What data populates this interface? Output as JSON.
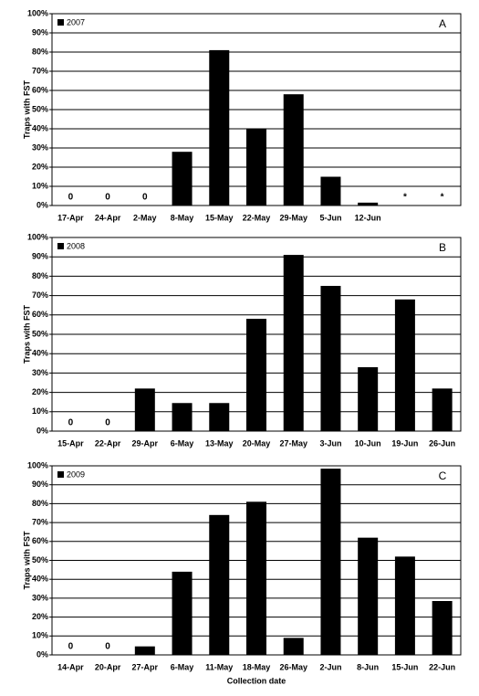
{
  "chart_data": [
    {
      "type": "bar",
      "annotation": "A",
      "y_label": "Traps with FST",
      "color": "#000000",
      "series": [
        {
          "name": "2007",
          "color": "#000000",
          "values": [
            0,
            0,
            0,
            28,
            81,
            40,
            58,
            15,
            1.5,
            null,
            null
          ],
          "value_labels": [
            "0",
            "0",
            "0",
            null,
            null,
            null,
            null,
            null,
            null,
            "*",
            "*"
          ]
        }
      ],
      "categories": [
        "17-Apr",
        "24-Apr",
        "2-May",
        "8-May",
        "15-May",
        "22-May",
        "29-May",
        "5-Jun",
        "12-Jun",
        null,
        null
      ],
      "ylim": [
        0,
        100
      ],
      "yticks": [
        {
          "value": 0,
          "label": "0%"
        },
        {
          "value": 10,
          "label": "10%"
        },
        {
          "value": 20,
          "label": "20%"
        },
        {
          "value": 30,
          "label": "30%"
        },
        {
          "value": 40,
          "label": "40%"
        },
        {
          "value": 50,
          "label": "50%"
        },
        {
          "value": 60,
          "label": "60%"
        },
        {
          "value": 70,
          "label": "70%"
        },
        {
          "value": 80,
          "label": "80%"
        },
        {
          "value": 90,
          "label": "90%"
        },
        {
          "value": 100,
          "label": "100%"
        }
      ],
      "grid": true,
      "legend": "upper left"
    },
    {
      "type": "bar",
      "annotation": "B",
      "y_label": "Traps with FST",
      "color": "#000000",
      "series": [
        {
          "name": "2008",
          "color": "#000000",
          "values": [
            0,
            0,
            22,
            14.5,
            14.5,
            58,
            91,
            75,
            33,
            68,
            22
          ],
          "value_labels": [
            "0",
            "0",
            null,
            null,
            null,
            null,
            null,
            null,
            null,
            null,
            null
          ]
        }
      ],
      "categories": [
        "15-Apr",
        "22-Apr",
        "29-Apr",
        "6-May",
        "13-May",
        "20-May",
        "27-May",
        "3-Jun",
        "10-Jun",
        "19-Jun",
        "26-Jun"
      ],
      "ylim": [
        0,
        100
      ],
      "yticks": [
        {
          "value": 0,
          "label": "0%"
        },
        {
          "value": 10,
          "label": "10%"
        },
        {
          "value": 20,
          "label": "20%"
        },
        {
          "value": 30,
          "label": "30%"
        },
        {
          "value": 40,
          "label": "40%"
        },
        {
          "value": 50,
          "label": "50%"
        },
        {
          "value": 60,
          "label": "60%"
        },
        {
          "value": 70,
          "label": "70%"
        },
        {
          "value": 80,
          "label": "80%"
        },
        {
          "value": 90,
          "label": "90%"
        },
        {
          "value": 100,
          "label": "100%"
        }
      ],
      "grid": true,
      "legend": "upper left"
    },
    {
      "type": "bar",
      "annotation": "C",
      "y_label": "Traps with FST",
      "x_label": "Collection date",
      "color": "#000000",
      "series": [
        {
          "name": "2009",
          "color": "#000000",
          "values": [
            0,
            0,
            4.5,
            44,
            74,
            81,
            9,
            98.5,
            62,
            52,
            28.5
          ],
          "value_labels": [
            "0",
            "0",
            null,
            null,
            null,
            null,
            null,
            null,
            null,
            null,
            null
          ]
        }
      ],
      "categories": [
        "14-Apr",
        "20-Apr",
        "27-Apr",
        "6-May",
        "11-May",
        "18-May",
        "26-May",
        "2-Jun",
        "8-Jun",
        "15-Jun",
        "22-Jun"
      ],
      "ylim": [
        0,
        100
      ],
      "yticks": [
        {
          "value": 0,
          "label": "0%"
        },
        {
          "value": 10,
          "label": "10%"
        },
        {
          "value": 20,
          "label": "20%"
        },
        {
          "value": 30,
          "label": "30%"
        },
        {
          "value": 40,
          "label": "40%"
        },
        {
          "value": 50,
          "label": "50%"
        },
        {
          "value": 60,
          "label": "60%"
        },
        {
          "value": 70,
          "label": "70%"
        },
        {
          "value": 80,
          "label": "80%"
        },
        {
          "value": 90,
          "label": "90%"
        },
        {
          "value": 100,
          "label": "100%"
        }
      ],
      "grid": true,
      "legend": "upper left"
    }
  ]
}
